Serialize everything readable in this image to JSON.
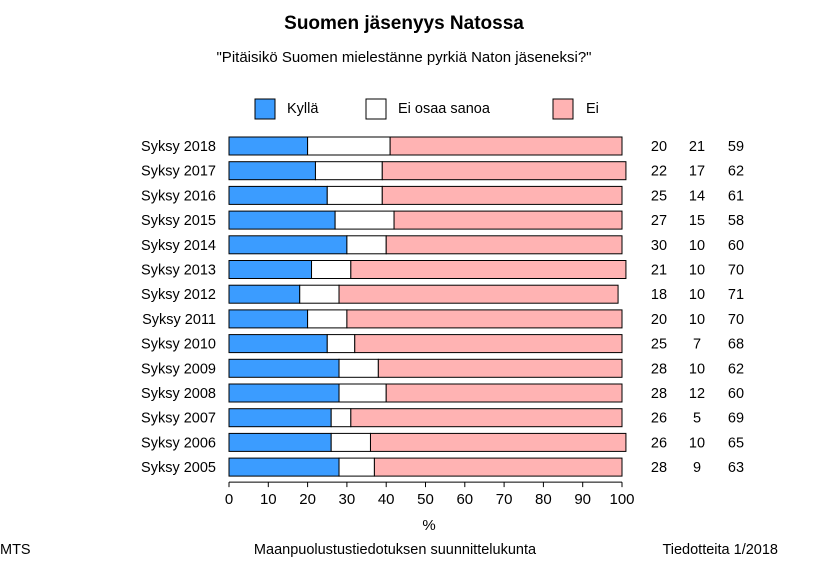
{
  "chart_data": {
    "type": "bar",
    "orientation": "horizontal",
    "stacked": true,
    "title": "Suomen jäsenyys Natossa",
    "subtitle": "\"Pitäisikö Suomen mielestänne pyrkiä Naton jäseneksi?\"",
    "xlabel": "%",
    "xlim": [
      0,
      100
    ],
    "xticks": [
      "0",
      "10",
      "20",
      "30",
      "40",
      "50",
      "60",
      "70",
      "80",
      "90",
      "100"
    ],
    "grid": false,
    "legend_position": "top",
    "categories": [
      "Syksy 2018",
      "Syksy 2017",
      "Syksy 2016",
      "Syksy 2015",
      "Syksy 2014",
      "Syksy 2013",
      "Syksy 2012",
      "Syksy 2011",
      "Syksy 2010",
      "Syksy 2009",
      "Syksy 2008",
      "Syksy 2007",
      "Syksy 2006",
      "Syksy 2005"
    ],
    "series": [
      {
        "name": "Kyllä",
        "color": "#3b9cff",
        "values": [
          20,
          22,
          25,
          27,
          30,
          21,
          18,
          20,
          25,
          28,
          28,
          26,
          26,
          28
        ]
      },
      {
        "name": "Ei osaa sanoa",
        "color": "#ffffff",
        "values": [
          21,
          17,
          14,
          15,
          10,
          10,
          10,
          10,
          7,
          10,
          12,
          5,
          10,
          9
        ]
      },
      {
        "name": "Ei",
        "color": "#ffb3b3",
        "values": [
          59,
          62,
          61,
          58,
          60,
          70,
          71,
          70,
          68,
          62,
          60,
          69,
          65,
          63
        ]
      }
    ]
  },
  "footer": {
    "left": "MTS",
    "center": "Maanpuolustustiedotuksen suunnittelukunta",
    "right": "Tiedotteita 1/2018"
  }
}
